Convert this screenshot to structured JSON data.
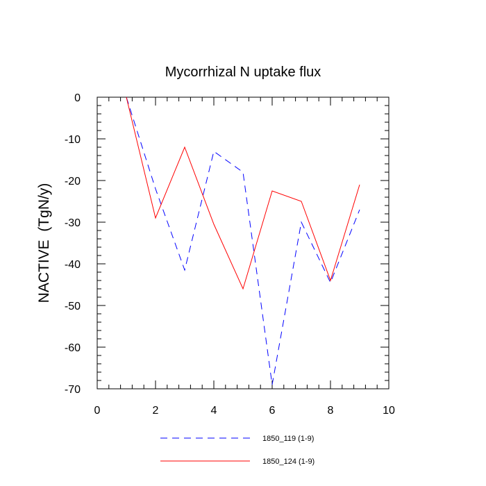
{
  "chart_data": {
    "type": "line",
    "title": "Mycorrhizal N uptake flux",
    "xlabel": "",
    "ylabel": "NACTIVE  (TgN/y)",
    "xlim": [
      0,
      10
    ],
    "ylim": [
      -70,
      0
    ],
    "x_ticks": [
      0,
      2,
      4,
      6,
      8,
      10
    ],
    "x_tick_labels": [
      "0",
      "2",
      "4",
      "6",
      "8",
      "10"
    ],
    "y_ticks": [
      0,
      -10,
      -20,
      -30,
      -40,
      -50,
      -60,
      -70
    ],
    "y_tick_labels": [
      "0",
      "-10",
      "-20",
      "-30",
      "-40",
      "-50",
      "-60",
      "-70"
    ],
    "grid": false,
    "legend_position": "bottom",
    "series": [
      {
        "name": "1850_119 (1-9)",
        "color": "#0000ff",
        "style": "dashed",
        "x": [
          1,
          2,
          3,
          4,
          5,
          6,
          7,
          8,
          9
        ],
        "values": [
          0,
          -22,
          -41.5,
          -13,
          -18,
          -69,
          -30,
          -44.5,
          -27
        ]
      },
      {
        "name": "1850_124 (1-9)",
        "color": "#ff0000",
        "style": "solid",
        "x": [
          1,
          2,
          3,
          4,
          5,
          6,
          7,
          8,
          9
        ],
        "values": [
          0,
          -29,
          -12,
          -30.5,
          -46,
          -22.5,
          -25,
          -44,
          -21
        ]
      }
    ]
  }
}
